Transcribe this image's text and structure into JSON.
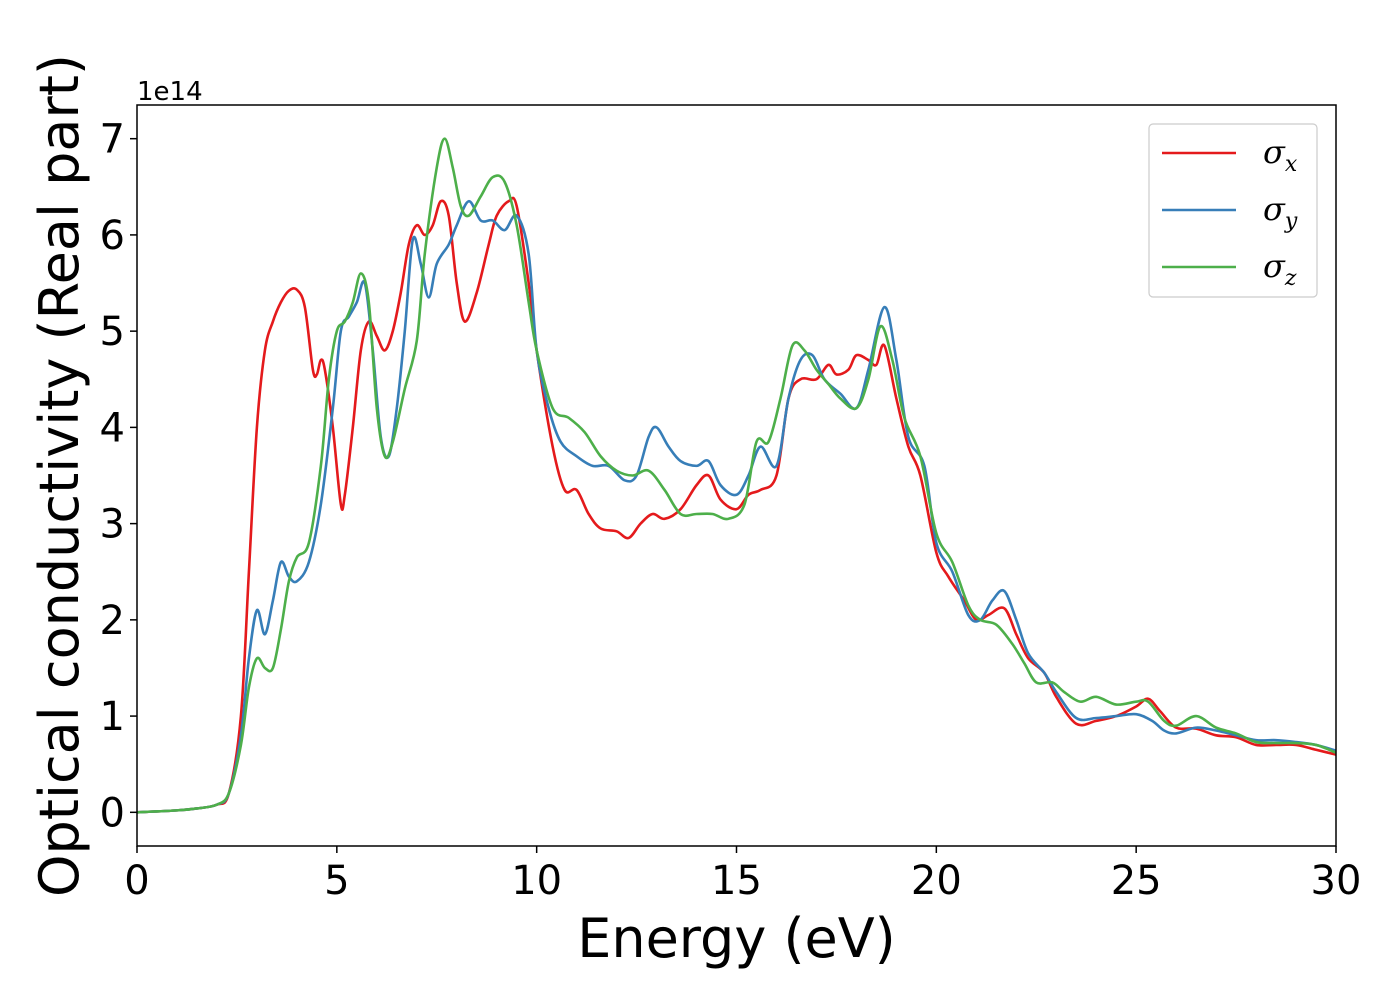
{
  "chart_data": {
    "type": "line",
    "xlabel": "Energy (eV)",
    "ylabel": "Optical conductivity (Real part)",
    "y_offset_label": "1e14",
    "xlim": [
      0,
      30
    ],
    "ylim": [
      -0.35,
      7.35
    ],
    "x_ticks": [
      0,
      5,
      10,
      15,
      20,
      25,
      30
    ],
    "x_tick_labels": [
      "0",
      "5",
      "10",
      "15",
      "20",
      "25",
      "30"
    ],
    "y_ticks": [
      0,
      1,
      2,
      3,
      4,
      5,
      6,
      7
    ],
    "y_tick_labels": [
      "0",
      "1",
      "2",
      "3",
      "4",
      "5",
      "6",
      "7"
    ],
    "grid": false,
    "legend_position": "top-right",
    "series": [
      {
        "name": "σx",
        "symbol": "σ",
        "subscript": "x",
        "color": "#e41a1c",
        "points": [
          [
            0,
            0
          ],
          [
            1,
            0.02
          ],
          [
            1.5,
            0.04
          ],
          [
            2,
            0.08
          ],
          [
            2.3,
            0.2
          ],
          [
            2.6,
            1.0
          ],
          [
            2.8,
            2.5
          ],
          [
            3.0,
            4.0
          ],
          [
            3.2,
            4.8
          ],
          [
            3.4,
            5.1
          ],
          [
            3.6,
            5.3
          ],
          [
            3.8,
            5.42
          ],
          [
            4.0,
            5.43
          ],
          [
            4.2,
            5.25
          ],
          [
            4.4,
            4.6
          ],
          [
            4.5,
            4.55
          ],
          [
            4.6,
            4.7
          ],
          [
            4.7,
            4.6
          ],
          [
            4.9,
            4.0
          ],
          [
            5.1,
            3.2
          ],
          [
            5.2,
            3.3
          ],
          [
            5.4,
            4.0
          ],
          [
            5.6,
            4.8
          ],
          [
            5.8,
            5.1
          ],
          [
            6.0,
            4.95
          ],
          [
            6.2,
            4.8
          ],
          [
            6.4,
            5.0
          ],
          [
            6.6,
            5.4
          ],
          [
            6.8,
            5.9
          ],
          [
            7.0,
            6.1
          ],
          [
            7.2,
            6.0
          ],
          [
            7.4,
            6.1
          ],
          [
            7.6,
            6.35
          ],
          [
            7.8,
            6.2
          ],
          [
            8.0,
            5.5
          ],
          [
            8.2,
            5.1
          ],
          [
            8.5,
            5.4
          ],
          [
            8.8,
            5.9
          ],
          [
            9.0,
            6.2
          ],
          [
            9.3,
            6.35
          ],
          [
            9.5,
            6.3
          ],
          [
            9.8,
            5.5
          ],
          [
            10.0,
            4.8
          ],
          [
            10.4,
            3.8
          ],
          [
            10.7,
            3.35
          ],
          [
            11.0,
            3.35
          ],
          [
            11.3,
            3.1
          ],
          [
            11.6,
            2.95
          ],
          [
            12.0,
            2.92
          ],
          [
            12.3,
            2.85
          ],
          [
            12.6,
            3.0
          ],
          [
            12.9,
            3.1
          ],
          [
            13.2,
            3.05
          ],
          [
            13.6,
            3.15
          ],
          [
            14.0,
            3.4
          ],
          [
            14.3,
            3.5
          ],
          [
            14.6,
            3.25
          ],
          [
            15.0,
            3.15
          ],
          [
            15.3,
            3.3
          ],
          [
            15.6,
            3.35
          ],
          [
            16.0,
            3.5
          ],
          [
            16.3,
            4.3
          ],
          [
            16.6,
            4.5
          ],
          [
            17.0,
            4.5
          ],
          [
            17.3,
            4.65
          ],
          [
            17.5,
            4.55
          ],
          [
            17.8,
            4.6
          ],
          [
            18.0,
            4.75
          ],
          [
            18.3,
            4.7
          ],
          [
            18.5,
            4.65
          ],
          [
            18.7,
            4.85
          ],
          [
            19.0,
            4.3
          ],
          [
            19.3,
            3.8
          ],
          [
            19.6,
            3.5
          ],
          [
            20.0,
            2.7
          ],
          [
            20.3,
            2.45
          ],
          [
            20.7,
            2.2
          ],
          [
            21.0,
            2.0
          ],
          [
            21.3,
            2.05
          ],
          [
            21.7,
            2.12
          ],
          [
            22.0,
            1.85
          ],
          [
            22.3,
            1.6
          ],
          [
            22.7,
            1.45
          ],
          [
            23.0,
            1.2
          ],
          [
            23.5,
            0.92
          ],
          [
            24.0,
            0.95
          ],
          [
            24.5,
            1.0
          ],
          [
            25.0,
            1.1
          ],
          [
            25.3,
            1.18
          ],
          [
            25.6,
            1.05
          ],
          [
            26.0,
            0.88
          ],
          [
            26.5,
            0.87
          ],
          [
            27.0,
            0.8
          ],
          [
            27.5,
            0.78
          ],
          [
            28.0,
            0.7
          ],
          [
            28.5,
            0.7
          ],
          [
            29.0,
            0.7
          ],
          [
            29.5,
            0.65
          ],
          [
            30.0,
            0.6
          ]
        ]
      },
      {
        "name": "σy",
        "symbol": "σ",
        "subscript": "y",
        "color": "#377eb8",
        "points": [
          [
            0,
            0
          ],
          [
            1,
            0.02
          ],
          [
            1.5,
            0.04
          ],
          [
            2,
            0.08
          ],
          [
            2.3,
            0.2
          ],
          [
            2.6,
            0.8
          ],
          [
            2.8,
            1.6
          ],
          [
            3.0,
            2.1
          ],
          [
            3.2,
            1.85
          ],
          [
            3.4,
            2.2
          ],
          [
            3.6,
            2.6
          ],
          [
            3.8,
            2.45
          ],
          [
            4.0,
            2.4
          ],
          [
            4.3,
            2.6
          ],
          [
            4.6,
            3.2
          ],
          [
            4.9,
            4.2
          ],
          [
            5.1,
            5.0
          ],
          [
            5.3,
            5.15
          ],
          [
            5.5,
            5.3
          ],
          [
            5.7,
            5.5
          ],
          [
            5.9,
            4.8
          ],
          [
            6.1,
            3.9
          ],
          [
            6.3,
            3.7
          ],
          [
            6.5,
            4.2
          ],
          [
            6.7,
            5.0
          ],
          [
            6.9,
            5.95
          ],
          [
            7.1,
            5.7
          ],
          [
            7.3,
            5.35
          ],
          [
            7.5,
            5.7
          ],
          [
            7.8,
            5.9
          ],
          [
            8.0,
            6.1
          ],
          [
            8.3,
            6.35
          ],
          [
            8.6,
            6.15
          ],
          [
            8.9,
            6.15
          ],
          [
            9.2,
            6.05
          ],
          [
            9.5,
            6.2
          ],
          [
            9.8,
            5.8
          ],
          [
            10.0,
            4.8
          ],
          [
            10.3,
            4.2
          ],
          [
            10.6,
            3.85
          ],
          [
            11.0,
            3.7
          ],
          [
            11.4,
            3.6
          ],
          [
            11.8,
            3.6
          ],
          [
            12.2,
            3.45
          ],
          [
            12.5,
            3.5
          ],
          [
            12.8,
            3.9
          ],
          [
            13.0,
            4.0
          ],
          [
            13.3,
            3.8
          ],
          [
            13.6,
            3.65
          ],
          [
            14.0,
            3.6
          ],
          [
            14.3,
            3.65
          ],
          [
            14.6,
            3.4
          ],
          [
            15.0,
            3.3
          ],
          [
            15.3,
            3.5
          ],
          [
            15.6,
            3.8
          ],
          [
            16.0,
            3.6
          ],
          [
            16.3,
            4.3
          ],
          [
            16.6,
            4.7
          ],
          [
            16.9,
            4.75
          ],
          [
            17.2,
            4.5
          ],
          [
            17.6,
            4.35
          ],
          [
            18.0,
            4.2
          ],
          [
            18.3,
            4.6
          ],
          [
            18.7,
            5.25
          ],
          [
            19.0,
            4.7
          ],
          [
            19.3,
            3.9
          ],
          [
            19.7,
            3.6
          ],
          [
            20.0,
            2.8
          ],
          [
            20.4,
            2.5
          ],
          [
            20.8,
            2.05
          ],
          [
            21.1,
            2.0
          ],
          [
            21.4,
            2.2
          ],
          [
            21.7,
            2.3
          ],
          [
            22.0,
            2.0
          ],
          [
            22.3,
            1.65
          ],
          [
            22.7,
            1.45
          ],
          [
            23.0,
            1.25
          ],
          [
            23.5,
            0.98
          ],
          [
            24.0,
            0.98
          ],
          [
            24.5,
            1.0
          ],
          [
            25.0,
            1.02
          ],
          [
            25.4,
            0.95
          ],
          [
            25.7,
            0.85
          ],
          [
            26.0,
            0.82
          ],
          [
            26.5,
            0.88
          ],
          [
            27.0,
            0.85
          ],
          [
            27.5,
            0.8
          ],
          [
            28.0,
            0.75
          ],
          [
            28.5,
            0.75
          ],
          [
            29.0,
            0.73
          ],
          [
            29.5,
            0.7
          ],
          [
            30.0,
            0.64
          ]
        ]
      },
      {
        "name": "σz",
        "symbol": "σ",
        "subscript": "z",
        "color": "#4daf4a",
        "points": [
          [
            0,
            0
          ],
          [
            1,
            0.02
          ],
          [
            1.5,
            0.04
          ],
          [
            2,
            0.08
          ],
          [
            2.3,
            0.2
          ],
          [
            2.6,
            0.7
          ],
          [
            2.8,
            1.3
          ],
          [
            3.0,
            1.6
          ],
          [
            3.2,
            1.5
          ],
          [
            3.4,
            1.5
          ],
          [
            3.6,
            1.9
          ],
          [
            3.8,
            2.4
          ],
          [
            4.0,
            2.65
          ],
          [
            4.3,
            2.8
          ],
          [
            4.6,
            3.6
          ],
          [
            4.8,
            4.5
          ],
          [
            5.0,
            5.0
          ],
          [
            5.2,
            5.1
          ],
          [
            5.4,
            5.3
          ],
          [
            5.6,
            5.6
          ],
          [
            5.8,
            5.3
          ],
          [
            6.0,
            4.2
          ],
          [
            6.2,
            3.7
          ],
          [
            6.4,
            3.85
          ],
          [
            6.7,
            4.4
          ],
          [
            7.0,
            4.9
          ],
          [
            7.2,
            5.8
          ],
          [
            7.5,
            6.7
          ],
          [
            7.7,
            7.0
          ],
          [
            7.9,
            6.7
          ],
          [
            8.1,
            6.3
          ],
          [
            8.3,
            6.2
          ],
          [
            8.6,
            6.4
          ],
          [
            8.9,
            6.6
          ],
          [
            9.2,
            6.55
          ],
          [
            9.5,
            6.1
          ],
          [
            9.8,
            5.3
          ],
          [
            10.0,
            4.8
          ],
          [
            10.4,
            4.2
          ],
          [
            10.8,
            4.1
          ],
          [
            11.2,
            3.95
          ],
          [
            11.6,
            3.7
          ],
          [
            12.0,
            3.55
          ],
          [
            12.4,
            3.5
          ],
          [
            12.8,
            3.55
          ],
          [
            13.2,
            3.35
          ],
          [
            13.6,
            3.1
          ],
          [
            14.0,
            3.1
          ],
          [
            14.4,
            3.1
          ],
          [
            14.8,
            3.05
          ],
          [
            15.2,
            3.2
          ],
          [
            15.5,
            3.85
          ],
          [
            15.8,
            3.85
          ],
          [
            16.1,
            4.3
          ],
          [
            16.4,
            4.85
          ],
          [
            16.7,
            4.8
          ],
          [
            17.0,
            4.6
          ],
          [
            17.3,
            4.45
          ],
          [
            17.6,
            4.3
          ],
          [
            18.0,
            4.2
          ],
          [
            18.3,
            4.5
          ],
          [
            18.6,
            5.05
          ],
          [
            18.9,
            4.7
          ],
          [
            19.2,
            4.1
          ],
          [
            19.6,
            3.7
          ],
          [
            20.0,
            2.9
          ],
          [
            20.4,
            2.6
          ],
          [
            20.8,
            2.15
          ],
          [
            21.1,
            2.0
          ],
          [
            21.5,
            1.95
          ],
          [
            21.9,
            1.75
          ],
          [
            22.2,
            1.55
          ],
          [
            22.5,
            1.35
          ],
          [
            22.9,
            1.35
          ],
          [
            23.2,
            1.25
          ],
          [
            23.6,
            1.15
          ],
          [
            24.0,
            1.2
          ],
          [
            24.5,
            1.12
          ],
          [
            25.0,
            1.15
          ],
          [
            25.3,
            1.15
          ],
          [
            25.7,
            0.95
          ],
          [
            26.0,
            0.9
          ],
          [
            26.5,
            1.0
          ],
          [
            27.0,
            0.88
          ],
          [
            27.5,
            0.82
          ],
          [
            28.0,
            0.73
          ],
          [
            28.5,
            0.72
          ],
          [
            29.0,
            0.72
          ],
          [
            29.5,
            0.7
          ],
          [
            30.0,
            0.62
          ]
        ]
      }
    ]
  }
}
